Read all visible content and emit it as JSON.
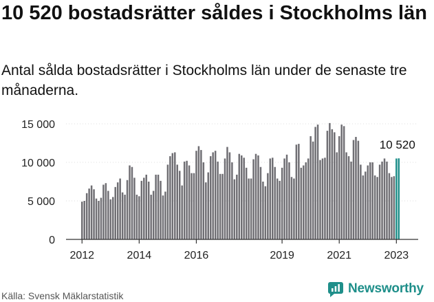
{
  "header": {
    "title": "10 520 bostadsrätter såldes i Stockholms län",
    "subtitle": "Antal sålda bostadsrätter i Stockholms län under de senaste tre månaderna."
  },
  "footer": {
    "source": "Källa: Svensk Mäklarstatistik",
    "brand": "Newsworthy"
  },
  "colors": {
    "bar": "#6f6e73",
    "highlight": "#1f8f8a",
    "axis": "#333333",
    "grid": "#dddddd"
  },
  "chart_data": {
    "type": "bar",
    "title": "10 520 bostadsrätter såldes i Stockholms län",
    "xlabel": "",
    "ylabel": "",
    "ylim": [
      0,
      15000
    ],
    "yticks": [
      0,
      5000,
      10000,
      15000
    ],
    "ytick_labels": [
      "0",
      "5 000",
      "10 000",
      "15 000"
    ],
    "xticks": [
      2012,
      2014,
      2016,
      2019,
      2021,
      2023
    ],
    "xtick_labels": [
      "2012",
      "2014",
      "2016",
      "2019",
      "2021",
      "2023"
    ],
    "x_start": 2012,
    "highlight_label": "10 520",
    "values": [
      4900,
      5000,
      6000,
      6600,
      7000,
      6500,
      5300,
      5000,
      5400,
      7100,
      7300,
      6300,
      5200,
      5500,
      6800,
      7400,
      7900,
      6100,
      5800,
      7700,
      9600,
      9400,
      8000,
      5800,
      5600,
      7600,
      8000,
      8400,
      7500,
      5800,
      6300,
      8400,
      8400,
      7600,
      5700,
      6200,
      9700,
      10800,
      11200,
      11300,
      9700,
      8900,
      7000,
      10100,
      10200,
      9600,
      8600,
      8600,
      11500,
      12100,
      11600,
      10000,
      7400,
      8700,
      10800,
      11300,
      11500,
      10100,
      8500,
      8500,
      10500,
      12000,
      11300,
      10000,
      7800,
      8400,
      11100,
      10900,
      10600,
      9300,
      7900,
      7900,
      10400,
      11100,
      10900,
      9400,
      7500,
      6900,
      8600,
      10500,
      10600,
      9400,
      7900,
      7600,
      9300,
      10500,
      11000,
      10000,
      8100,
      7900,
      12300,
      12400,
      9300,
      9600,
      10000,
      10500,
      13400,
      12700,
      14600,
      14900,
      10300,
      10500,
      10600,
      14100,
      15100,
      14300,
      13900,
      11300,
      13400,
      14900,
      14700,
      11300,
      10800,
      10100,
      12900,
      13300,
      12800,
      9700,
      8300,
      8800,
      9600,
      10000,
      10000,
      8300,
      8100,
      9700,
      10100,
      10500,
      10100,
      8600,
      8100,
      8200,
      10500,
      10520
    ],
    "highlight": [
      false,
      false,
      false,
      false,
      false,
      false,
      false,
      false,
      false,
      false,
      false,
      false,
      false,
      false,
      false,
      false,
      false,
      false,
      false,
      false,
      false,
      false,
      false,
      false,
      false,
      false,
      false,
      false,
      false,
      false,
      false,
      false,
      false,
      false,
      false,
      false,
      false,
      false,
      false,
      false,
      false,
      false,
      false,
      false,
      false,
      false,
      false,
      false,
      false,
      false,
      false,
      false,
      false,
      false,
      false,
      false,
      false,
      false,
      false,
      false,
      false,
      false,
      false,
      false,
      false,
      false,
      false,
      false,
      false,
      false,
      false,
      false,
      false,
      false,
      false,
      false,
      false,
      false,
      false,
      false,
      false,
      false,
      false,
      false,
      false,
      false,
      false,
      false,
      false,
      false,
      false,
      false,
      false,
      false,
      false,
      false,
      false,
      false,
      false,
      false,
      false,
      false,
      false,
      false,
      false,
      false,
      false,
      false,
      false,
      false,
      false,
      false,
      false,
      false,
      false,
      false,
      false,
      false,
      false,
      false,
      false,
      false,
      false,
      false,
      false,
      false,
      false,
      false,
      false,
      false,
      false,
      false,
      true,
      true
    ]
  }
}
